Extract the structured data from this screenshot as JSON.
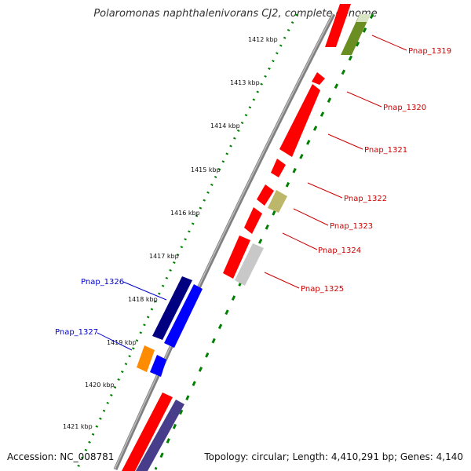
{
  "title": "Polaromonas naphthalenivorans CJ2, complete genome",
  "footer": {
    "accession": "Accession: NC_008781",
    "summary": "Topology: circular; Length: 4,410,291 bp; Genes: 4,140"
  },
  "ticks": [
    "1412 kbp",
    "1413 kbp",
    "1414 kbp",
    "1415 kbp",
    "1416 kbp",
    "1417 kbp",
    "1418 kbp",
    "1419 kbp",
    "1420 kbp",
    "1421 kbp"
  ],
  "gene_labels": {
    "pnap_1319": "Pnap_1319",
    "pnap_1320": "Pnap_1320",
    "pnap_1321": "Pnap_1321",
    "pnap_1322": "Pnap_1322",
    "pnap_1323": "Pnap_1323",
    "pnap_1324": "Pnap_1324",
    "pnap_1325": "Pnap_1325",
    "pnap_1326": "Pnap_1326",
    "pnap_1327": "Pnap_1327"
  },
  "colors": {
    "forward_label": "#cc0000",
    "reverse_label": "#0000cc",
    "red_gene": "#ff0000",
    "olive_gene": "#6b8e23",
    "khaki_gene": "#bdb76b",
    "gray_gene": "#c8c8c8",
    "navy_gene": "#000080",
    "blue_gene": "#0000ff",
    "orange_gene": "#ff8c00",
    "slate_gene": "#483d8b",
    "backbone": "#808080",
    "ruler": "#008000"
  }
}
